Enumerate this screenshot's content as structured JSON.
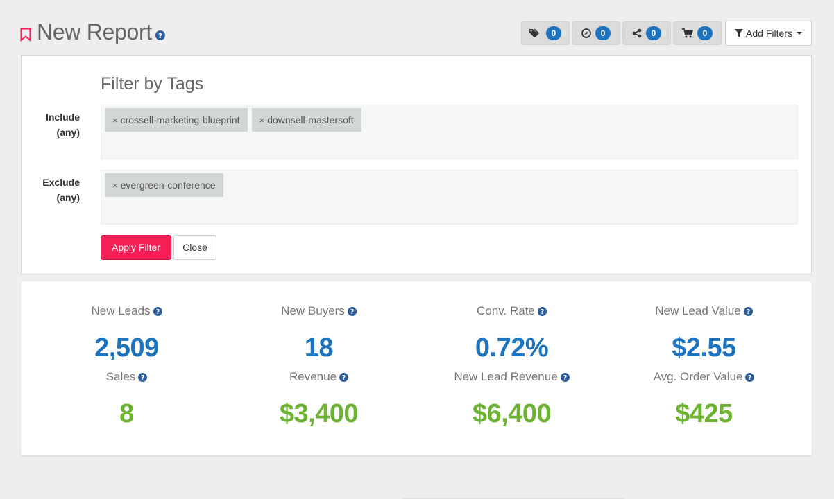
{
  "header": {
    "title": "New Report",
    "icons": {
      "bookmark": "bookmark-icon",
      "help": "question-circle-icon"
    },
    "counters": [
      {
        "icon": "tags-icon",
        "count": "0"
      },
      {
        "icon": "compass-icon",
        "count": "0"
      },
      {
        "icon": "share-icon",
        "count": "0"
      },
      {
        "icon": "cart-icon",
        "count": "0"
      }
    ],
    "add_filters_label": "Add Filters"
  },
  "filter_panel": {
    "title": "Filter by Tags",
    "include": {
      "label_line1": "Include",
      "label_line2": "(any)",
      "tags": [
        "crossell-marketing-blueprint",
        "downsell-mastersoft"
      ]
    },
    "exclude": {
      "label_line1": "Exclude",
      "label_line2": "(any)",
      "tags": [
        "evergreen-conference"
      ]
    },
    "remove_glyph": "×",
    "apply_label": "Apply Filter",
    "close_label": "Close"
  },
  "stats": {
    "row1": [
      {
        "label": "New Leads",
        "value": "2,509"
      },
      {
        "label": "New Buyers",
        "value": "18"
      },
      {
        "label": "Conv. Rate",
        "value": "0.72%"
      },
      {
        "label": "New Lead Value",
        "value": "$2.55"
      }
    ],
    "row2": [
      {
        "label": "Sales",
        "value": "8"
      },
      {
        "label": "Revenue",
        "value": "$3,400"
      },
      {
        "label": "New Lead Revenue",
        "value": "$6,400"
      },
      {
        "label": "Avg. Order Value",
        "value": "$425"
      }
    ]
  },
  "colors": {
    "accent_red": "#f51f55",
    "badge_blue": "#1e73be",
    "value_blue": "#1e73be",
    "value_green": "#6cb331"
  }
}
